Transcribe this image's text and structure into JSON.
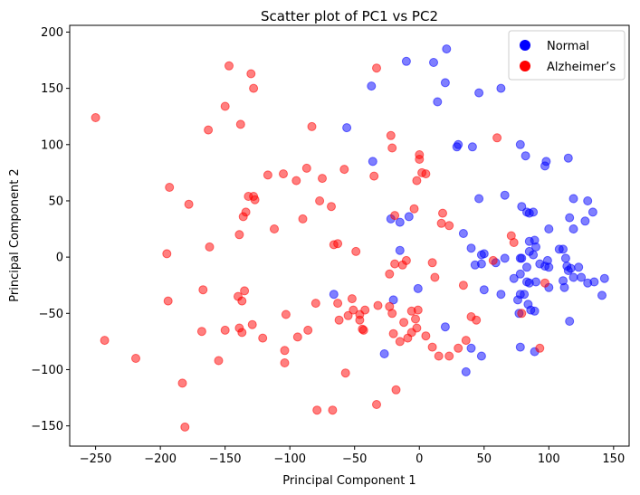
{
  "chart_data": {
    "type": "scatter",
    "title": "Scatter plot of PC1 vs PC2",
    "xlabel": "Principal Component 1",
    "ylabel": "Principal Component 2",
    "xlim": [
      -270,
      162
    ],
    "ylim": [
      -168,
      206
    ],
    "xticks": [
      -250,
      -200,
      -150,
      -100,
      -50,
      0,
      50,
      100,
      150
    ],
    "yticks": [
      -150,
      -100,
      -50,
      0,
      50,
      100,
      150,
      200
    ],
    "grid": false,
    "legend": "top-right",
    "series": [
      {
        "name": "Normal",
        "color": "#0000ff",
        "points": [
          [
            -10,
            174
          ],
          [
            11,
            173
          ],
          [
            21,
            185
          ],
          [
            20,
            155
          ],
          [
            14,
            138
          ],
          [
            -37,
            152
          ],
          [
            46,
            146
          ],
          [
            63,
            150
          ],
          [
            -56,
            115
          ],
          [
            41,
            98
          ],
          [
            29,
            98
          ],
          [
            30,
            100
          ],
          [
            78,
            100
          ],
          [
            97,
            81
          ],
          [
            98,
            85
          ],
          [
            82,
            90
          ],
          [
            115,
            88
          ],
          [
            -36,
            85
          ],
          [
            46,
            52
          ],
          [
            66,
            55
          ],
          [
            79,
            45
          ],
          [
            83,
            40
          ],
          [
            85,
            39
          ],
          [
            88,
            40
          ],
          [
            119,
            52
          ],
          [
            130,
            50
          ],
          [
            116,
            35
          ],
          [
            119,
            25
          ],
          [
            100,
            25
          ],
          [
            128,
            32
          ],
          [
            134,
            40
          ],
          [
            -22,
            34
          ],
          [
            -15,
            31
          ],
          [
            -8,
            36
          ],
          [
            34,
            21
          ],
          [
            -15,
            6
          ],
          [
            40,
            8
          ],
          [
            50,
            3
          ],
          [
            48,
            2
          ],
          [
            59,
            -5
          ],
          [
            66,
            -1
          ],
          [
            43,
            -7
          ],
          [
            48,
            -6
          ],
          [
            85,
            14
          ],
          [
            89,
            15
          ],
          [
            90,
            9
          ],
          [
            85,
            5
          ],
          [
            88,
            2
          ],
          [
            79,
            -1
          ],
          [
            78,
            -1
          ],
          [
            83,
            -9
          ],
          [
            93,
            -6
          ],
          [
            97,
            -8
          ],
          [
            99,
            -3
          ],
          [
            100,
            -9
          ],
          [
            108,
            7
          ],
          [
            111,
            7
          ],
          [
            114,
            -8
          ],
          [
            113,
            -1
          ],
          [
            115,
            -12
          ],
          [
            117,
            -10
          ],
          [
            119,
            -18
          ],
          [
            123,
            -9
          ],
          [
            125,
            -18
          ],
          [
            130,
            -23
          ],
          [
            135,
            -22
          ],
          [
            143,
            -19
          ],
          [
            78,
            -15
          ],
          [
            73,
            -19
          ],
          [
            83,
            -22
          ],
          [
            85,
            -23
          ],
          [
            90,
            -22
          ],
          [
            111,
            -21
          ],
          [
            112,
            -27
          ],
          [
            100,
            -27
          ],
          [
            -1,
            -28
          ],
          [
            -66,
            -33
          ],
          [
            -20,
            -38
          ],
          [
            50,
            -29
          ],
          [
            63,
            -33
          ],
          [
            78,
            -33
          ],
          [
            76,
            -38
          ],
          [
            81,
            -33
          ],
          [
            84,
            -42
          ],
          [
            86,
            -47
          ],
          [
            89,
            -48
          ],
          [
            77,
            -50
          ],
          [
            116,
            -57
          ],
          [
            141,
            -34
          ],
          [
            20,
            -62
          ],
          [
            -27,
            -86
          ],
          [
            40,
            -81
          ],
          [
            48,
            -88
          ],
          [
            36,
            -102
          ],
          [
            89,
            -84
          ],
          [
            78,
            -80
          ]
        ]
      },
      {
        "name": "Alzheimer’s",
        "color": "#ff0000",
        "points": [
          [
            -250,
            124
          ],
          [
            -147,
            170
          ],
          [
            -130,
            163
          ],
          [
            -128,
            150
          ],
          [
            -150,
            134
          ],
          [
            -138,
            118
          ],
          [
            -163,
            113
          ],
          [
            -83,
            116
          ],
          [
            -33,
            168
          ],
          [
            -22,
            108
          ],
          [
            -21,
            97
          ],
          [
            60,
            106
          ],
          [
            0,
            91
          ],
          [
            0,
            87
          ],
          [
            -117,
            73
          ],
          [
            -105,
            74
          ],
          [
            -87,
            79
          ],
          [
            -75,
            70
          ],
          [
            -95,
            68
          ],
          [
            -58,
            78
          ],
          [
            -35,
            72
          ],
          [
            2,
            75
          ],
          [
            5,
            74
          ],
          [
            -2,
            68
          ],
          [
            -193,
            62
          ],
          [
            -178,
            47
          ],
          [
            -128,
            54
          ],
          [
            -127,
            51
          ],
          [
            -132,
            54
          ],
          [
            -134,
            40
          ],
          [
            -136,
            36
          ],
          [
            -77,
            50
          ],
          [
            -68,
            45
          ],
          [
            -112,
            25
          ],
          [
            -90,
            34
          ],
          [
            -19,
            37
          ],
          [
            -4,
            43
          ],
          [
            18,
            39
          ],
          [
            17,
            30
          ],
          [
            23,
            28
          ],
          [
            -162,
            9
          ],
          [
            -66,
            11
          ],
          [
            -63,
            12
          ],
          [
            -49,
            5
          ],
          [
            -139,
            20
          ],
          [
            -195,
            3
          ],
          [
            -167,
            -29
          ],
          [
            -140,
            -35
          ],
          [
            -135,
            -30
          ],
          [
            -137,
            -39
          ],
          [
            -194,
            -39
          ],
          [
            -103,
            -51
          ],
          [
            -80,
            -41
          ],
          [
            -63,
            -41
          ],
          [
            -62,
            -56
          ],
          [
            -52,
            -37
          ],
          [
            -55,
            -52
          ],
          [
            -51,
            -47
          ],
          [
            -46,
            -51
          ],
          [
            -42,
            -47
          ],
          [
            -32,
            -43
          ],
          [
            -23,
            -44
          ],
          [
            -21,
            -50
          ],
          [
            -23,
            -15
          ],
          [
            -10,
            -3
          ],
          [
            -19,
            -6
          ],
          [
            -13,
            -7
          ],
          [
            10,
            -5
          ],
          [
            12,
            -18
          ],
          [
            34,
            -25
          ],
          [
            57,
            -3
          ],
          [
            71,
            19
          ],
          [
            73,
            13
          ],
          [
            -139,
            -63
          ],
          [
            -137,
            -67
          ],
          [
            -129,
            -60
          ],
          [
            -121,
            -72
          ],
          [
            -168,
            -66
          ],
          [
            -150,
            -65
          ],
          [
            -94,
            -71
          ],
          [
            -86,
            -65
          ],
          [
            -46,
            -56
          ],
          [
            -44,
            -64
          ],
          [
            -6,
            -67
          ],
          [
            -6,
            -48
          ],
          [
            -2,
            -63
          ],
          [
            -1,
            -47
          ],
          [
            5,
            -70
          ],
          [
            10,
            -80
          ],
          [
            15,
            -88
          ],
          [
            -20,
            -68
          ],
          [
            -15,
            -75
          ],
          [
            -12,
            -58
          ],
          [
            -9,
            -72
          ],
          [
            -3,
            -55
          ],
          [
            23,
            -88
          ],
          [
            30,
            -81
          ],
          [
            36,
            -74
          ],
          [
            40,
            -53
          ],
          [
            44,
            -56
          ],
          [
            79,
            -50
          ],
          [
            93,
            -81
          ],
          [
            97,
            -23
          ],
          [
            -104,
            -83
          ],
          [
            -104,
            -94
          ],
          [
            -79,
            -136
          ],
          [
            -67,
            -136
          ],
          [
            -183,
            -112
          ],
          [
            -243,
            -74
          ],
          [
            -219,
            -90
          ],
          [
            -155,
            -92
          ],
          [
            -181,
            -151
          ],
          [
            -57,
            -103
          ],
          [
            -33,
            -131
          ],
          [
            -18,
            -118
          ],
          [
            -43,
            -65
          ]
        ]
      }
    ]
  }
}
